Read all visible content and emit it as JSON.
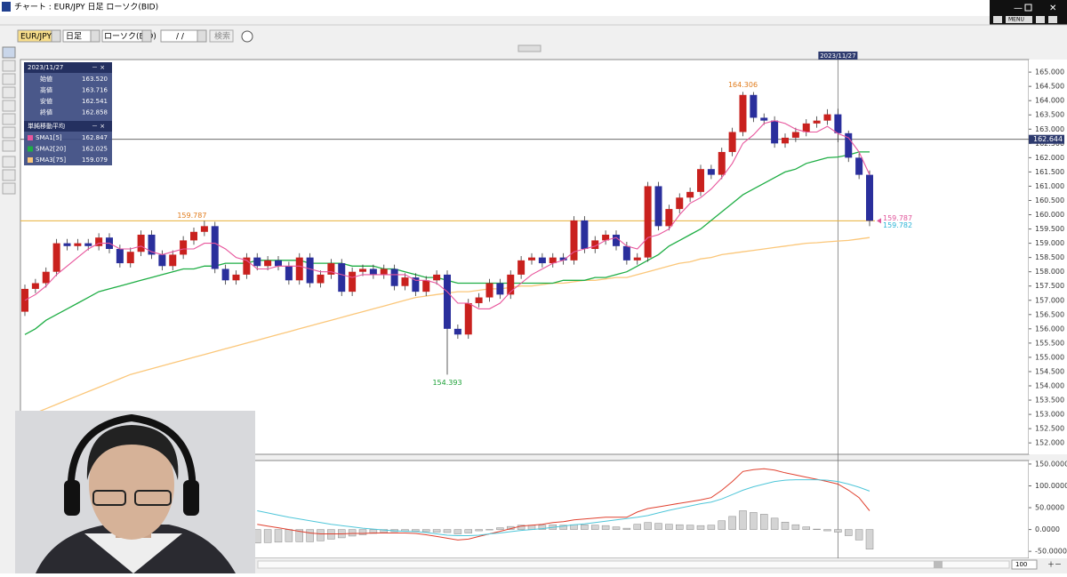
{
  "window": {
    "title": "チャート : EUR/JPY 日足 ローソク(BID)",
    "menu": "MENU"
  },
  "toolbar": {
    "symbol": "EUR/JPY",
    "period": "日足",
    "chart_type": "ローソク(BID)",
    "date": "/ /",
    "search": "検索"
  },
  "crosshair_date": "2023/11/27",
  "info_panel": {
    "rows": [
      {
        "label": "始値",
        "value": "163.520"
      },
      {
        "label": "高値",
        "value": "163.716"
      },
      {
        "label": "安値",
        "value": "162.541"
      },
      {
        "label": "終値",
        "value": "162.858"
      }
    ],
    "sma_title": "単純移動平均"
  },
  "zoom": "100",
  "chart_data": [
    {
      "type": "candlestick",
      "up_color": "#c9211e",
      "down_color": "#2a2f9c",
      "open": [
        156.6,
        157.4,
        157.6,
        158.0,
        159.0,
        158.9,
        159.0,
        158.9,
        159.2,
        158.8,
        158.3,
        158.7,
        159.3,
        158.6,
        158.2,
        158.6,
        159.1,
        159.4,
        159.6,
        158.1,
        157.7,
        157.9,
        158.5,
        158.2,
        158.4,
        158.2,
        157.7,
        158.5,
        157.6,
        157.9,
        158.3,
        157.3,
        158.0,
        158.1,
        157.9,
        158.1,
        157.5,
        157.8,
        157.3,
        157.7,
        157.9,
        156.0,
        155.8,
        156.9,
        157.1,
        157.6,
        157.2,
        157.9,
        158.4,
        158.5,
        158.3,
        158.5,
        158.4,
        159.8,
        158.8,
        159.1,
        159.3,
        158.9,
        158.4,
        158.5,
        161.0,
        159.6,
        160.2,
        160.6,
        160.8,
        161.6,
        161.4,
        162.2,
        162.9,
        164.2,
        163.4,
        163.3,
        162.5,
        162.7,
        162.9,
        163.2,
        163.3,
        163.52,
        162.858,
        162.0,
        161.4
      ],
      "high": [
        157.55,
        157.75,
        158.15,
        159.15,
        159.15,
        159.15,
        159.15,
        159.35,
        159.35,
        158.95,
        158.85,
        159.45,
        159.45,
        158.75,
        158.75,
        159.25,
        159.55,
        159.787,
        159.75,
        158.25,
        158.05,
        158.65,
        158.65,
        158.55,
        158.55,
        158.35,
        158.65,
        158.65,
        158.05,
        158.45,
        158.45,
        158.15,
        158.25,
        158.25,
        158.25,
        158.25,
        157.95,
        157.95,
        157.85,
        158.05,
        158.05,
        156.15,
        157.05,
        157.25,
        157.75,
        157.75,
        158.05,
        158.55,
        158.65,
        158.65,
        158.65,
        158.65,
        159.95,
        159.95,
        159.25,
        159.45,
        159.45,
        159.05,
        158.65,
        161.15,
        161.15,
        160.35,
        160.75,
        160.95,
        161.75,
        161.75,
        162.35,
        163.05,
        164.306,
        164.3,
        163.55,
        163.45,
        162.85,
        163.05,
        163.35,
        163.45,
        163.7,
        163.716,
        162.95,
        162.15,
        161.55
      ],
      "low": [
        156.45,
        157.25,
        157.45,
        157.85,
        158.75,
        158.75,
        158.75,
        158.75,
        158.65,
        158.15,
        158.15,
        158.55,
        158.45,
        158.05,
        158.05,
        158.45,
        158.95,
        159.25,
        157.95,
        157.55,
        157.55,
        157.75,
        158.05,
        158.05,
        158.05,
        157.55,
        157.55,
        157.45,
        157.45,
        157.75,
        157.15,
        157.15,
        157.85,
        157.75,
        157.75,
        157.35,
        157.35,
        157.15,
        157.15,
        157.55,
        154.393,
        155.65,
        155.65,
        156.75,
        156.95,
        157.05,
        157.05,
        157.75,
        158.25,
        158.15,
        158.15,
        158.25,
        158.25,
        158.65,
        158.65,
        158.95,
        158.75,
        158.25,
        158.25,
        158.35,
        159.45,
        159.45,
        160.05,
        160.45,
        160.65,
        161.25,
        161.25,
        162.05,
        162.75,
        163.25,
        163.15,
        162.35,
        162.35,
        162.55,
        162.75,
        163.05,
        163.15,
        162.541,
        161.85,
        161.25,
        159.6
      ],
      "close": [
        157.4,
        157.6,
        158.0,
        159.0,
        158.9,
        159.0,
        158.9,
        159.2,
        158.8,
        158.3,
        158.7,
        159.3,
        158.6,
        158.2,
        158.6,
        159.1,
        159.4,
        159.6,
        158.1,
        157.7,
        157.9,
        158.5,
        158.2,
        158.4,
        158.2,
        157.7,
        158.5,
        157.6,
        157.9,
        158.3,
        157.3,
        158.0,
        158.1,
        157.9,
        158.1,
        157.5,
        157.8,
        157.3,
        157.7,
        157.9,
        156.0,
        155.8,
        156.9,
        157.1,
        157.6,
        157.2,
        157.9,
        158.4,
        158.5,
        158.3,
        158.5,
        158.4,
        159.8,
        158.8,
        159.1,
        159.3,
        158.9,
        158.4,
        158.5,
        161.0,
        159.6,
        160.2,
        160.6,
        160.8,
        161.6,
        161.4,
        162.2,
        162.9,
        164.2,
        163.4,
        163.3,
        162.5,
        162.7,
        162.9,
        163.2,
        163.3,
        163.52,
        162.858,
        162.0,
        161.4,
        159.787
      ],
      "series": [
        {
          "name": "SMA1[5]",
          "color": "#e8559c",
          "values": [
            157.0,
            157.2,
            157.5,
            157.9,
            158.2,
            158.5,
            158.8,
            159.0,
            159.0,
            158.8,
            158.8,
            158.9,
            158.7,
            158.6,
            158.7,
            158.8,
            158.8,
            159.0,
            159.0,
            158.8,
            158.5,
            158.4,
            158.1,
            158.1,
            158.2,
            158.2,
            158.2,
            158.1,
            158.0,
            158.0,
            157.9,
            157.8,
            157.9,
            157.9,
            157.9,
            157.9,
            157.9,
            157.7,
            157.7,
            157.6,
            157.3,
            156.9,
            156.9,
            156.7,
            156.7,
            156.9,
            157.3,
            157.6,
            157.9,
            158.1,
            158.3,
            158.4,
            158.7,
            158.8,
            158.9,
            159.1,
            159.2,
            158.9,
            158.8,
            159.2,
            159.3,
            159.5,
            160.0,
            160.4,
            160.6,
            160.9,
            161.3,
            161.8,
            162.5,
            162.8,
            163.2,
            163.3,
            163.2,
            163.0,
            162.9,
            162.9,
            163.1,
            162.847,
            162.7,
            162.2,
            161.4
          ]
        },
        {
          "name": "SMA2[20]",
          "color": "#1fae45",
          "values": [
            155.8,
            156.0,
            156.3,
            156.5,
            156.7,
            156.9,
            157.1,
            157.3,
            157.4,
            157.5,
            157.6,
            157.7,
            157.8,
            157.9,
            158.0,
            158.1,
            158.1,
            158.2,
            158.2,
            158.3,
            158.3,
            158.3,
            158.4,
            158.4,
            158.4,
            158.4,
            158.4,
            158.3,
            158.3,
            158.3,
            158.3,
            158.2,
            158.2,
            158.2,
            158.1,
            158.1,
            158.0,
            157.9,
            157.8,
            157.8,
            157.7,
            157.6,
            157.6,
            157.6,
            157.6,
            157.6,
            157.6,
            157.6,
            157.6,
            157.6,
            157.6,
            157.7,
            157.7,
            157.7,
            157.8,
            157.8,
            157.9,
            158.0,
            158.2,
            158.4,
            158.6,
            158.9,
            159.1,
            159.3,
            159.5,
            159.8,
            160.1,
            160.4,
            160.7,
            160.9,
            161.1,
            161.3,
            161.5,
            161.6,
            161.8,
            161.9,
            162.0,
            162.025,
            162.1,
            162.2,
            162.2
          ]
        },
        {
          "name": "SMA3[75]",
          "color": "#fbc77a",
          "values": [
            152.9,
            153.05,
            153.2,
            153.35,
            153.5,
            153.65,
            153.8,
            153.95,
            154.1,
            154.25,
            154.4,
            154.5,
            154.6,
            154.7,
            154.8,
            154.9,
            155.0,
            155.1,
            155.2,
            155.3,
            155.4,
            155.5,
            155.6,
            155.7,
            155.8,
            155.9,
            156.0,
            156.1,
            156.2,
            156.3,
            156.4,
            156.5,
            156.6,
            156.7,
            156.8,
            156.9,
            157.0,
            157.1,
            157.15,
            157.2,
            157.25,
            157.3,
            157.3,
            157.35,
            157.4,
            157.4,
            157.45,
            157.5,
            157.5,
            157.55,
            157.6,
            157.6,
            157.65,
            157.7,
            157.7,
            157.75,
            157.8,
            157.8,
            157.9,
            158.0,
            158.1,
            158.2,
            158.3,
            158.35,
            158.45,
            158.5,
            158.6,
            158.65,
            158.7,
            158.75,
            158.8,
            158.85,
            158.9,
            158.95,
            159.0,
            159.02,
            159.05,
            159.079,
            159.1,
            159.15,
            159.2
          ]
        }
      ],
      "ylim": [
        151.6,
        165.44
      ],
      "yticks": [
        {
          "value": 152,
          "label": "152.000"
        },
        {
          "value": 152.5,
          "label": "152.500"
        },
        {
          "value": 153,
          "label": "153.000"
        },
        {
          "value": 153.5,
          "label": "153.500"
        },
        {
          "value": 154,
          "label": "154.000"
        },
        {
          "value": 154.5,
          "label": "154.500"
        },
        {
          "value": 155,
          "label": "155.000"
        },
        {
          "value": 155.5,
          "label": "155.500"
        },
        {
          "value": 156,
          "label": "156.000"
        },
        {
          "value": 156.5,
          "label": "156.500"
        },
        {
          "value": 157,
          "label": "157.000"
        },
        {
          "value": 157.5,
          "label": "157.500"
        },
        {
          "value": 158,
          "label": "158.000"
        },
        {
          "value": 158.5,
          "label": "158.500"
        },
        {
          "value": 159,
          "label": "159.000"
        },
        {
          "value": 159.5,
          "label": "159.500"
        },
        {
          "value": 160,
          "label": "160.000"
        },
        {
          "value": 160.5,
          "label": "160.500"
        },
        {
          "value": 161,
          "label": "161.000"
        },
        {
          "value": 161.5,
          "label": "161.500"
        },
        {
          "value": 162,
          "label": "162.000"
        },
        {
          "value": 162.5,
          "label": "162.500"
        },
        {
          "value": 163,
          "label": "163.000"
        },
        {
          "value": 163.5,
          "label": "163.500"
        },
        {
          "value": 164,
          "label": "164.000"
        },
        {
          "value": 164.5,
          "label": "164.500"
        },
        {
          "value": 165,
          "label": "165.000"
        }
      ],
      "crosshair_price": 162.644,
      "second_price": 159.782,
      "price_line_color": "#e8b13a"
    },
    {
      "type": "macd",
      "series": [
        {
          "color": "#e0402e",
          "values": [
            null,
            null,
            null,
            null,
            null,
            null,
            null,
            null,
            null,
            null,
            null,
            null,
            null,
            null,
            null,
            null,
            null,
            null,
            null,
            null,
            null,
            null,
            12,
            8,
            4,
            0,
            -4,
            -8,
            -10,
            -10,
            -10,
            -9,
            -9,
            -8,
            -8,
            -8,
            -8,
            -9,
            -12,
            -16,
            -20,
            -24,
            -22,
            -16,
            -10,
            -4,
            2,
            8,
            10,
            12,
            16,
            18,
            22,
            24,
            26,
            28,
            28,
            28,
            40,
            48,
            52,
            56,
            60,
            64,
            68,
            73,
            90,
            110,
            133,
            137,
            139,
            136,
            130,
            125,
            120,
            115,
            110,
            104,
            90,
            73,
            43
          ]
        },
        {
          "color": "#4fc6d9",
          "values": [
            null,
            null,
            null,
            null,
            null,
            null,
            null,
            null,
            null,
            null,
            null,
            null,
            null,
            null,
            null,
            null,
            null,
            null,
            null,
            null,
            null,
            null,
            43,
            38,
            33,
            28,
            24,
            20,
            16,
            12,
            9,
            6,
            3,
            1,
            -1,
            -3,
            -4,
            -5,
            -7,
            -10,
            -13,
            -14,
            -14,
            -13,
            -10,
            -8,
            -5,
            -2,
            0,
            2,
            5,
            8,
            11,
            13,
            16,
            19,
            22,
            25,
            28,
            32,
            38,
            44,
            49,
            54,
            59,
            63,
            70,
            80,
            90,
            98,
            104,
            110,
            113,
            114,
            114,
            114,
            113,
            110,
            104,
            97,
            88
          ]
        }
      ],
      "histogram": [
        null,
        null,
        null,
        null,
        null,
        null,
        null,
        null,
        null,
        null,
        null,
        null,
        null,
        null,
        null,
        null,
        null,
        null,
        null,
        null,
        null,
        null,
        -31,
        -30,
        -29,
        -28,
        -28,
        -28,
        -26,
        -22,
        -19,
        -15,
        -12,
        -9,
        -7,
        -5,
        -4,
        -4,
        -5,
        -6,
        -7,
        -10,
        -8,
        -3,
        0,
        4,
        7,
        10,
        10,
        10,
        11,
        10,
        11,
        11,
        10,
        9,
        6,
        3,
        12,
        16,
        14,
        12,
        11,
        10,
        9,
        10,
        20,
        30,
        43,
        39,
        35,
        26,
        17,
        11,
        6,
        1,
        -3,
        -6,
        -14,
        -24,
        -45
      ],
      "histogram_color": "#d4d4d4",
      "ylim": [
        -66,
        158
      ],
      "yticks": [
        {
          "value": 150,
          "label": "150.0000"
        },
        {
          "value": 100,
          "label": "100.0000"
        },
        {
          "value": 50,
          "label": "50.0000"
        },
        {
          "value": 0,
          "label": "0.0000"
        },
        {
          "value": -50,
          "label": "-50.0000"
        }
      ]
    }
  ]
}
